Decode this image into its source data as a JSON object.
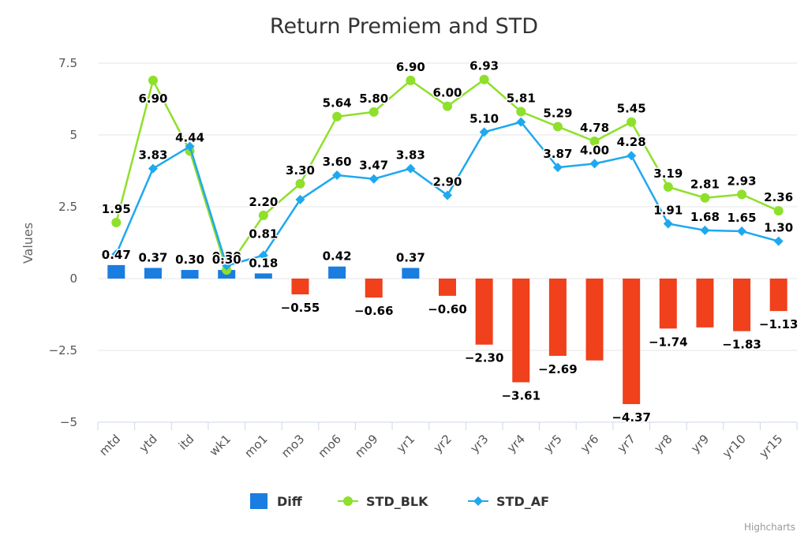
{
  "chart_data": {
    "type": "bar+line",
    "title": "Return Premiem and STD",
    "ylabel": "Values",
    "ylim": [
      -5,
      7.5
    ],
    "yticks": [
      7.5,
      5,
      2.5,
      0,
      -2.5,
      -5
    ],
    "ytick_labels": [
      "7.5",
      "5",
      "2.5",
      "0",
      "−2.5",
      "−5"
    ],
    "categories": [
      "mtd",
      "ytd",
      "itd",
      "wk1",
      "mo1",
      "mo3",
      "mo6",
      "mo9",
      "yr1",
      "yr2",
      "yr3",
      "yr4",
      "yr5",
      "yr6",
      "yr7",
      "yr8",
      "yr9",
      "yr10",
      "yr15"
    ],
    "series": [
      {
        "name": "Diff",
        "kind": "bar",
        "color": "#1a7de0",
        "negative_color": "#f0401c",
        "values": [
          0.47,
          0.37,
          0.3,
          0.3,
          0.18,
          -0.55,
          0.42,
          -0.66,
          0.37,
          -0.6,
          -2.3,
          -3.61,
          -2.69,
          -2.85,
          -4.37,
          -1.74,
          -1.7,
          -1.83,
          -1.13
        ],
        "labels": [
          "0.47",
          "0.37",
          "0.30",
          "0.30",
          "0.18",
          "−0.55",
          "0.42",
          "−0.66",
          "0.37",
          "−0.60",
          "−2.30",
          "−3.61",
          "−2.69",
          "",
          "−4.37",
          "−1.74",
          "",
          "−1.83",
          "−1.13"
        ]
      },
      {
        "name": "STD_BLK",
        "kind": "line",
        "marker": "circle",
        "color": "#8ee02a",
        "values": [
          1.95,
          6.9,
          4.44,
          0.3,
          2.2,
          3.3,
          5.64,
          5.8,
          6.9,
          6.0,
          6.93,
          5.81,
          5.29,
          4.78,
          5.45,
          3.19,
          2.81,
          2.93,
          2.36
        ],
        "labels": [
          "1.95",
          "6.90",
          "4.44",
          "0.30",
          "2.20",
          "3.30",
          "5.64",
          "5.80",
          "6.90",
          "6.00",
          "6.93",
          "5.81",
          "5.29",
          "4.78",
          "5.45",
          "3.19",
          "2.81",
          "2.93",
          "2.36"
        ]
      },
      {
        "name": "STD_AF",
        "kind": "line",
        "marker": "diamond",
        "color": "#1fa8ef",
        "values": [
          0.85,
          3.83,
          4.6,
          0.45,
          0.81,
          2.75,
          3.6,
          3.47,
          3.83,
          2.9,
          5.1,
          5.45,
          3.87,
          4.0,
          4.28,
          1.91,
          1.68,
          1.65,
          1.3
        ],
        "labels": [
          "",
          "3.83",
          "",
          "",
          "0.81",
          "",
          "3.60",
          "3.47",
          "3.83",
          "2.90",
          "5.10",
          "",
          "3.87",
          "4.00",
          "4.28",
          "1.91",
          "1.68",
          "1.65",
          "1.30"
        ]
      }
    ],
    "legend": "bottom-center",
    "credits": "Highcharts"
  }
}
